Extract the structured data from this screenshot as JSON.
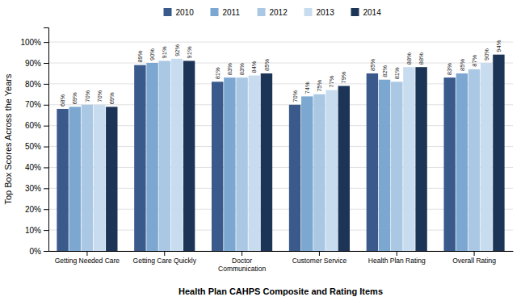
{
  "chart_data": {
    "type": "bar",
    "xlabel": "Health Plan CAHPS Composite and Rating Items",
    "ylabel": "Top Box Scores Across the Years",
    "categories": [
      "Getting Needed Care",
      "Getting Care Quickly",
      "Doctor\nCommunication",
      "Customer Service",
      "Health Plan Rating",
      "Overall Rating"
    ],
    "series": [
      {
        "name": "2010",
        "color": "#3A5A8C",
        "values": [
          68,
          89,
          81,
          70,
          85,
          83
        ],
        "value_labels": [
          "68%",
          "89%",
          "81%",
          "70%",
          "85%",
          "83%"
        ]
      },
      {
        "name": "2011",
        "color": "#7BA7D0",
        "values": [
          69,
          90,
          83,
          74,
          82,
          85
        ],
        "value_labels": [
          "69%",
          "90%",
          "83%",
          "74%",
          "82%",
          "85%"
        ]
      },
      {
        "name": "2012",
        "color": "#AAC8E4",
        "values": [
          70,
          91,
          83,
          75,
          81,
          87
        ],
        "value_labels": [
          "70%",
          "91%",
          "83%",
          "75%",
          "81%",
          "87%"
        ]
      },
      {
        "name": "2013",
        "color": "#C8DCF0",
        "values": [
          70,
          92,
          84,
          77,
          88,
          90
        ],
        "value_labels": [
          "70%",
          "92%",
          "84%",
          "77%",
          "88%",
          "90%"
        ]
      },
      {
        "name": "2014",
        "color": "#1C3557",
        "values": [
          69,
          91,
          85,
          79,
          88,
          94
        ],
        "value_labels": [
          "69%",
          "91%",
          "85%",
          "79%",
          "88%",
          "94%"
        ]
      }
    ],
    "ylim": [
      0,
      107
    ],
    "yticks": [
      {
        "value": 0,
        "label": "0%"
      },
      {
        "value": 10,
        "label": "10%"
      },
      {
        "value": 20,
        "label": "20%"
      },
      {
        "value": 30,
        "label": "30%"
      },
      {
        "value": 40,
        "label": "40%"
      },
      {
        "value": 50,
        "label": "50%"
      },
      {
        "value": 60,
        "label": "60%"
      },
      {
        "value": 70,
        "label": "70%"
      },
      {
        "value": 80,
        "label": "80%"
      },
      {
        "value": 90,
        "label": "90%"
      },
      {
        "value": 100,
        "label": "100%"
      }
    ],
    "grid": true,
    "legend": "top",
    "data_labels": true
  }
}
